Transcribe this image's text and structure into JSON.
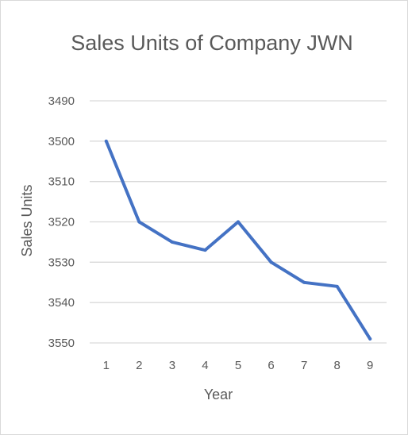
{
  "chart_data": {
    "type": "line",
    "title": "Sales Units of Company JWN",
    "xlabel": "Year",
    "ylabel": "Sales Units",
    "x": [
      1,
      2,
      3,
      4,
      5,
      6,
      7,
      8,
      9
    ],
    "y_ticks": [
      3490,
      3500,
      3510,
      3520,
      3530,
      3540,
      3550
    ],
    "ylim": [
      3490,
      3550
    ],
    "y_axis_reversed": true,
    "grid": "horizontal",
    "legend": "none",
    "series": [
      {
        "values": [
          3500,
          3520,
          3525,
          3527,
          3520,
          3530,
          3535,
          3536,
          3549
        ],
        "color": "#4472c4"
      }
    ]
  }
}
